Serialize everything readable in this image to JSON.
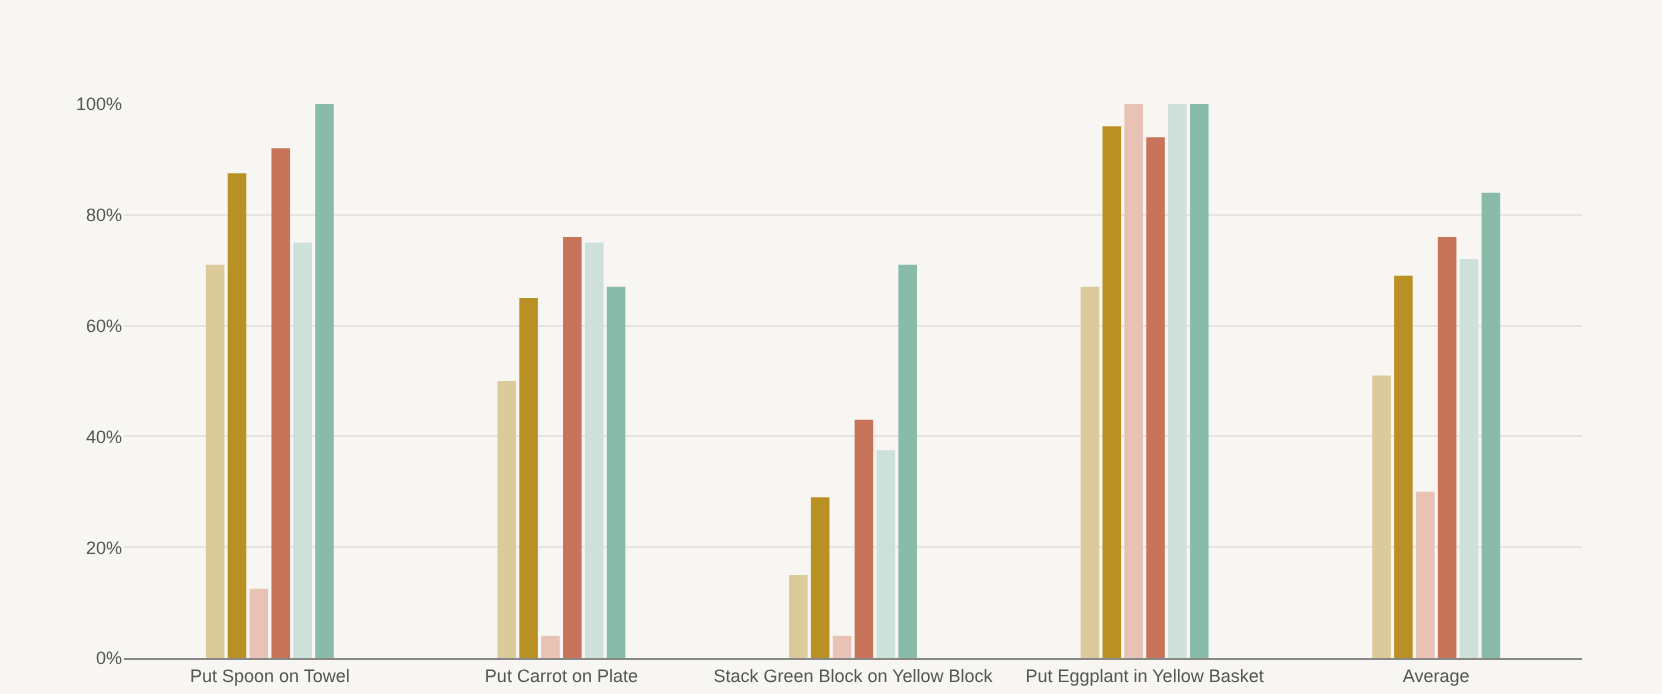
{
  "chart_data": {
    "type": "bar",
    "categories": [
      "Put Spoon on Towel",
      "Put Carrot on Plate",
      "Stack Green Block on Yellow Block",
      "Put Eggplant in Yellow Basket",
      "Average"
    ],
    "series": [
      {
        "color": "#dccb9a",
        "values": [
          71,
          50,
          15,
          67,
          51
        ]
      },
      {
        "color": "#b99023",
        "values": [
          87.5,
          65,
          29,
          96,
          69
        ]
      },
      {
        "color": "#e8c2b4",
        "values": [
          12.5,
          4,
          4,
          100,
          30
        ]
      },
      {
        "color": "#c8745a",
        "values": [
          92,
          76,
          43,
          94,
          76
        ]
      },
      {
        "color": "#cde0da",
        "values": [
          75,
          75,
          37.5,
          100,
          72
        ]
      },
      {
        "color": "#88bba9",
        "values": [
          100,
          67,
          71,
          100,
          84
        ]
      }
    ],
    "ylim": [
      0,
      100
    ],
    "yticks": [
      {
        "value": 0,
        "label": "0%"
      },
      {
        "value": 20,
        "label": "20%"
      },
      {
        "value": 40,
        "label": "40%"
      },
      {
        "value": 60,
        "label": "60%"
      },
      {
        "value": 80,
        "label": "80%"
      },
      {
        "value": 100,
        "label": "100%"
      }
    ],
    "grid": "y"
  }
}
